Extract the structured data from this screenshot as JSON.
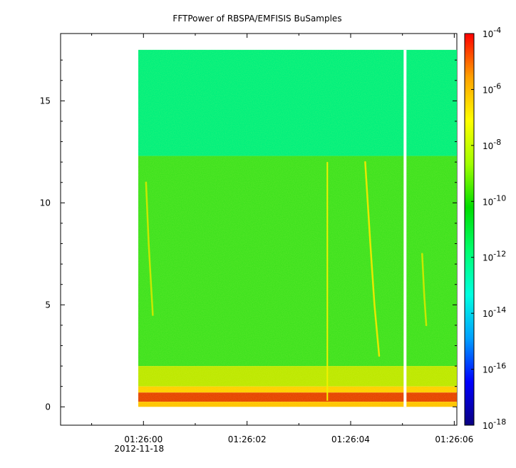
{
  "chart_data": {
    "type": "heatmap",
    "title": "FFTPower of RBSPA/EMFISIS  BuSamples",
    "xlabel": "",
    "ylabel": "",
    "x_axis": {
      "range": [
        "01:25:58.4",
        "01:26:06.05"
      ],
      "ticks": [
        {
          "value": 0,
          "label": "01:26:00",
          "sublabel": "2012-11-18"
        },
        {
          "value": 2,
          "label": "01:26:02",
          "sublabel": ""
        },
        {
          "value": 4,
          "label": "01:26:04",
          "sublabel": ""
        },
        {
          "value": 6,
          "label": "01:26:06",
          "sublabel": ""
        }
      ]
    },
    "y_axis": {
      "range": [
        -0.9,
        18.3
      ],
      "ticks": [
        {
          "value": 0,
          "label": "0"
        },
        {
          "value": 5,
          "label": "5"
        },
        {
          "value": 10,
          "label": "10"
        },
        {
          "value": 15,
          "label": "15"
        }
      ]
    },
    "colorbar": {
      "scale": "log",
      "range": [
        1e-18,
        0.0001
      ],
      "colors": [
        "#0a0080",
        "#0000ff",
        "#00a0ff",
        "#00ffe0",
        "#00ff70",
        "#00dd00",
        "#a0ff00",
        "#ffff00",
        "#ffa000",
        "#ff0000"
      ],
      "ticks": [
        {
          "exp": -4,
          "base": "10",
          "sup": "-4"
        },
        {
          "exp": -6,
          "base": "10",
          "sup": "-6"
        },
        {
          "exp": -8,
          "base": "10",
          "sup": "-8"
        },
        {
          "exp": -10,
          "base": "10",
          "sup": "-10"
        },
        {
          "exp": -12,
          "base": "10",
          "sup": "-12"
        },
        {
          "exp": -14,
          "base": "10",
          "sup": "-14"
        },
        {
          "exp": -16,
          "base": "10",
          "sup": "-16"
        },
        {
          "exp": -18,
          "base": "10",
          "sup": "-18"
        }
      ]
    },
    "data_extent": {
      "x": [
        "01:25:59.9",
        "01:26:06.05"
      ],
      "y": [
        0,
        17.5
      ],
      "data_gap_x": "01:26:05.05"
    },
    "bands": [
      {
        "y_range": [
          12.3,
          17.5
        ],
        "log_power": -11.6,
        "color": "#00f07c"
      },
      {
        "y_range": [
          2.0,
          12.3
        ],
        "log_power": -10.4,
        "color": "#3ee21e"
      },
      {
        "y_range": [
          1.0,
          2.0
        ],
        "log_power": -9.2,
        "color": "#bde800"
      },
      {
        "y_range": [
          0.7,
          1.0
        ],
        "log_power": -8.5,
        "color": "#ffd000"
      },
      {
        "y_range": [
          0.25,
          0.7
        ],
        "log_power": -6.5,
        "color": "#e64400"
      },
      {
        "y_range": [
          0,
          0.25
        ],
        "log_power": -8.0,
        "color": "#ffc400"
      }
    ],
    "features": [
      {
        "type": "vertical_line",
        "x": "01:26:03.55",
        "y_range": [
          0.3,
          12.0
        ],
        "color": "#f2f000"
      },
      {
        "type": "curve",
        "points": [
          [
            "01:26:04.28",
            12.0
          ],
          [
            "01:26:04.38",
            8.0
          ],
          [
            "01:26:04.46",
            5.0
          ],
          [
            "01:26:04.55",
            2.5
          ]
        ],
        "color": "#e8e800"
      },
      {
        "type": "curve",
        "points": [
          [
            "01:26:05.38",
            7.5
          ],
          [
            "01:26:05.42",
            5.5
          ],
          [
            "01:26:05.46",
            4.0
          ]
        ],
        "color": "#c8e800"
      },
      {
        "type": "curve",
        "points": [
          [
            "01:26:00.05",
            11.0
          ],
          [
            "01:26:00.10",
            8.0
          ],
          [
            "01:26:00.18",
            4.5
          ]
        ],
        "color": "#c8e800"
      }
    ]
  }
}
